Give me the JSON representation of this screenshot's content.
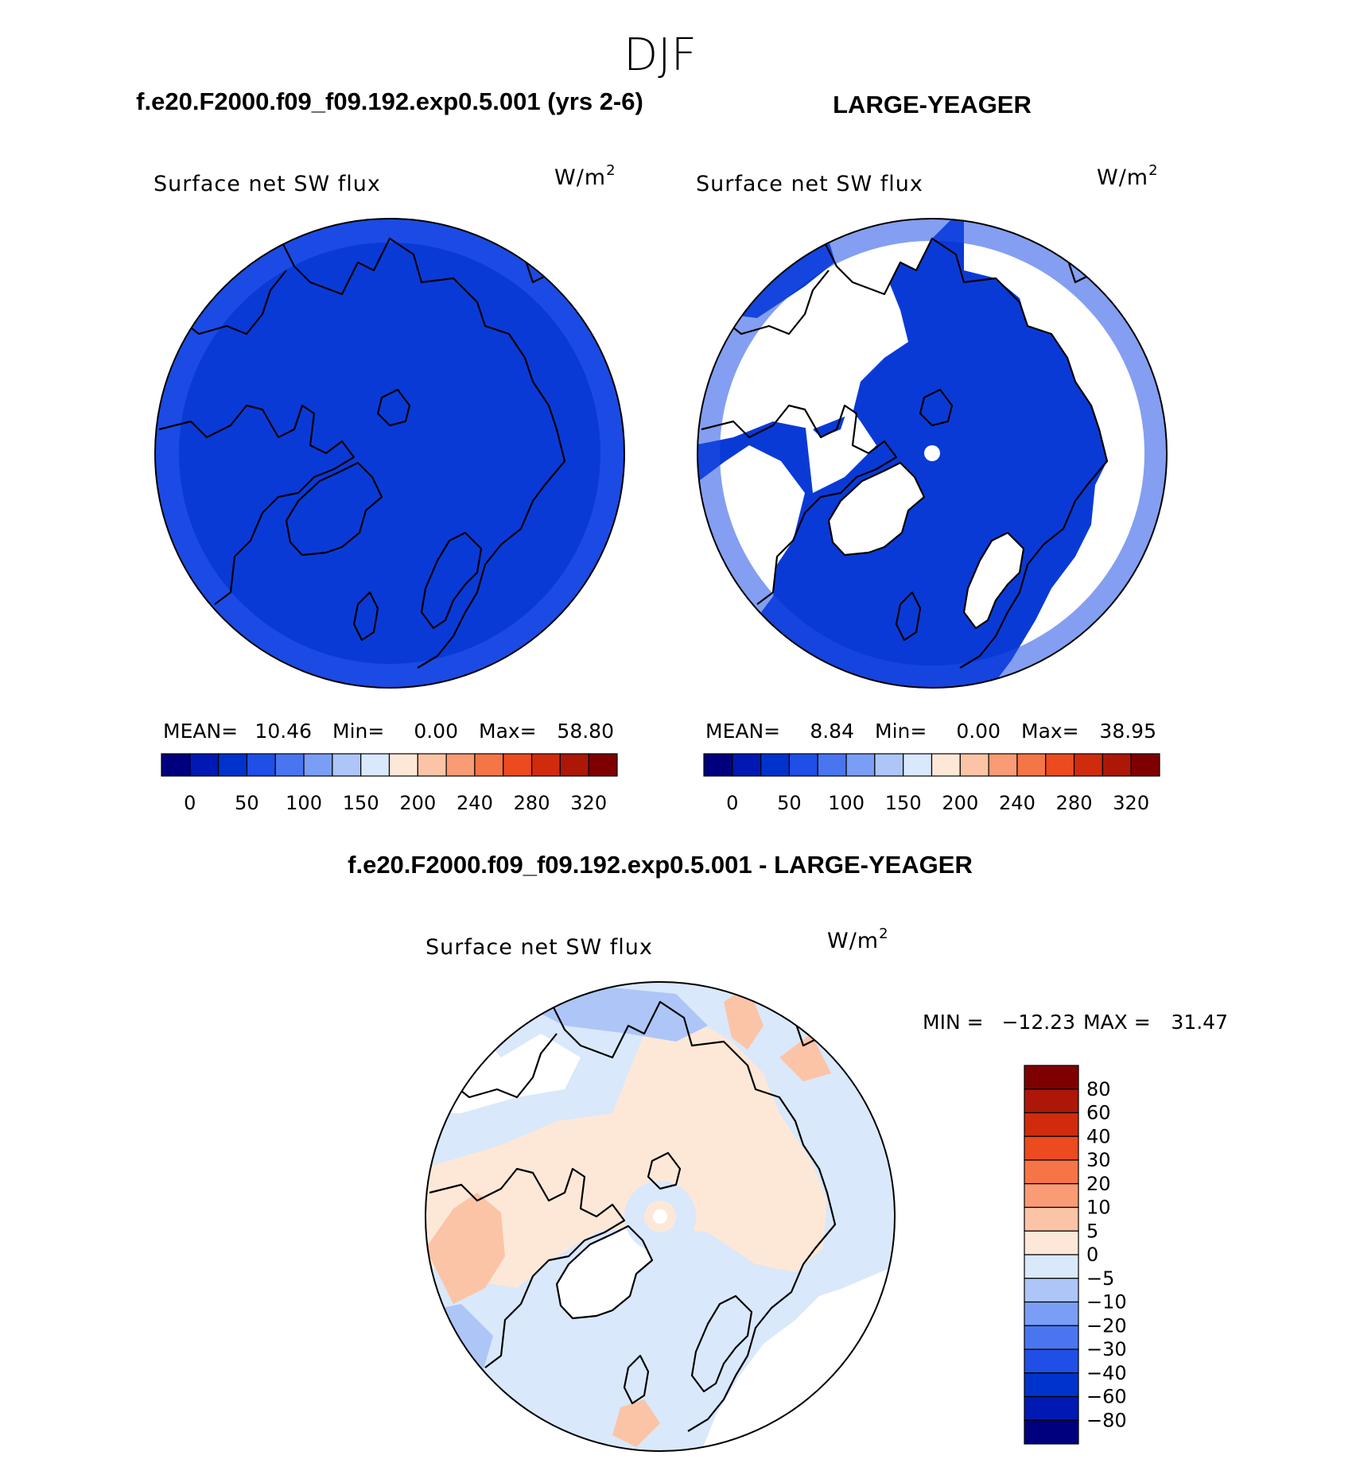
{
  "season": "DJF",
  "chart_data": [
    {
      "type": "heatmap",
      "projection": "polar-stereographic-north",
      "title": "f.e20.F2000.f09_f09.192.exp0.5.001 (yrs 2-6)",
      "variable_label": "Surface net SW flux",
      "units": "W/m",
      "units_exp": "2",
      "stats": {
        "mean_label": "MEAN=",
        "mean": "10.46",
        "min_label": "Min=",
        "min": "0.00",
        "max_label": "Max=",
        "max": "58.80"
      },
      "colorbar": {
        "orientation": "horizontal",
        "tick_labels": [
          "0",
          "50",
          "100",
          "150",
          "200",
          "240",
          "280",
          "320"
        ],
        "colors": [
          "#00007f",
          "#0019b2",
          "#0033cc",
          "#1f4fe6",
          "#4a75f0",
          "#7a9ef5",
          "#adc6f7",
          "#d9e8fb",
          "#fde8d8",
          "#fcc4a6",
          "#f99b74",
          "#f67546",
          "#ec4a1f",
          "#d12b0e",
          "#ad1708",
          "#7f0000"
        ]
      },
      "field_color": "#0a3ad6"
    },
    {
      "type": "heatmap",
      "projection": "polar-stereographic-north",
      "title": "LARGE-YEAGER",
      "variable_label": "Surface net SW flux",
      "units": "W/m",
      "units_exp": "2",
      "stats": {
        "mean_label": "MEAN=",
        "mean": "8.84",
        "min_label": "Min=",
        "min": "0.00",
        "max_label": "Max=",
        "max": "38.95"
      },
      "colorbar": {
        "orientation": "horizontal",
        "tick_labels": [
          "0",
          "50",
          "100",
          "150",
          "200",
          "240",
          "280",
          "320"
        ],
        "colors": [
          "#00007f",
          "#0019b2",
          "#0033cc",
          "#1f4fe6",
          "#4a75f0",
          "#7a9ef5",
          "#adc6f7",
          "#d9e8fb",
          "#fde8d8",
          "#fcc4a6",
          "#f99b74",
          "#f67546",
          "#ec4a1f",
          "#d12b0e",
          "#ad1708",
          "#7f0000"
        ]
      },
      "field_color": "#0a3ad6"
    },
    {
      "type": "heatmap",
      "projection": "polar-stereographic-north",
      "title": "f.e20.F2000.f09_f09.192.exp0.5.001 - LARGE-YEAGER",
      "variable_label": "Surface net SW flux",
      "units": "W/m",
      "units_exp": "2",
      "stats": {
        "min_label": "MIN =",
        "min": "−12.23",
        "max_label": "MAX =",
        "max": "31.47"
      },
      "colorbar": {
        "orientation": "vertical",
        "tick_labels": [
          "80",
          "60",
          "40",
          "30",
          "20",
          "10",
          "5",
          "0",
          "−5",
          "−10",
          "−20",
          "−30",
          "−40",
          "−60",
          "−80"
        ],
        "colors": [
          "#7f0000",
          "#ad1708",
          "#d12b0e",
          "#ec4a1f",
          "#f67546",
          "#f99b74",
          "#fcc4a6",
          "#fde8d8",
          "#d9e8fb",
          "#adc6f7",
          "#7a9ef5",
          "#4a75f0",
          "#1f4fe6",
          "#0033cc",
          "#0019b2",
          "#00007f"
        ]
      }
    }
  ]
}
